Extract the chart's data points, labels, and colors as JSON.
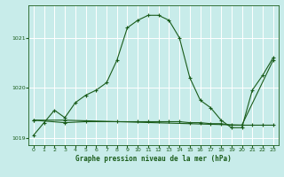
{
  "background_color": "#c8ecea",
  "grid_color": "#ffffff",
  "line_color": "#1a5c1a",
  "title": "Graphe pression niveau de la mer (hPa)",
  "xlim": [
    -0.5,
    23.5
  ],
  "ylim": [
    1018.85,
    1021.65
  ],
  "yticks": [
    1019,
    1020,
    1021
  ],
  "xticks": [
    0,
    1,
    2,
    3,
    4,
    5,
    6,
    7,
    8,
    9,
    10,
    11,
    12,
    13,
    14,
    15,
    16,
    17,
    18,
    19,
    20,
    21,
    22,
    23
  ],
  "line1_x": [
    0,
    1,
    2,
    3,
    4,
    5,
    6,
    7,
    8,
    9,
    10,
    11,
    12,
    13,
    14,
    15,
    16,
    17,
    18,
    19,
    20,
    21,
    22,
    23
  ],
  "line1_y": [
    1019.05,
    1019.3,
    1019.55,
    1019.4,
    1019.7,
    1019.85,
    1019.95,
    1020.1,
    1020.55,
    1021.2,
    1021.35,
    1021.45,
    1021.45,
    1021.35,
    1021.0,
    1020.2,
    1019.75,
    1019.6,
    1019.35,
    1019.2,
    1019.2,
    1019.95,
    1020.25,
    1020.6
  ],
  "line2_x": [
    0,
    3,
    20,
    23
  ],
  "line2_y": [
    1019.35,
    1019.35,
    1019.25,
    1020.55
  ],
  "line3_x": [
    0,
    3,
    5,
    8,
    10,
    11,
    12,
    13,
    14,
    15,
    16,
    17,
    18,
    19,
    20,
    21,
    22,
    23
  ],
  "line3_y": [
    1019.35,
    1019.3,
    1019.32,
    1019.32,
    1019.32,
    1019.32,
    1019.32,
    1019.32,
    1019.32,
    1019.3,
    1019.3,
    1019.28,
    1019.28,
    1019.25,
    1019.25,
    1019.25,
    1019.25,
    1019.25
  ]
}
